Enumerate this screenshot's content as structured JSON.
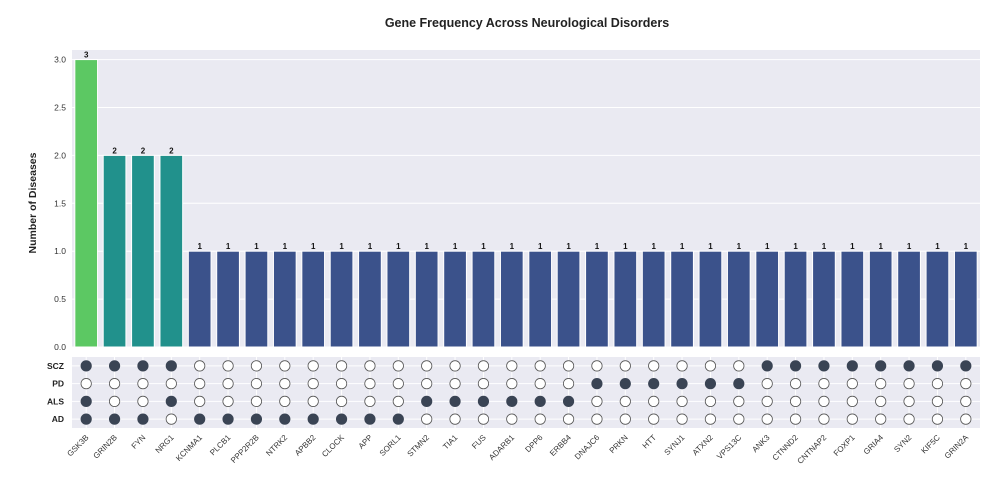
{
  "chart_data": {
    "type": "bar",
    "title": "Gene Frequency Across Neurological Disorders",
    "xlabel": "",
    "ylabel": "Number of Diseases",
    "ylim": [
      0,
      3.1
    ],
    "yticks": [
      "0.0",
      "0.5",
      "1.0",
      "1.5",
      "2.0",
      "2.5",
      "3.0"
    ],
    "ytick_values": [
      0,
      0.5,
      1.0,
      1.5,
      2.0,
      2.5,
      3.0
    ],
    "grid": true,
    "categories": [
      "GSK3B",
      "GRIN2B",
      "FYN",
      "NRG1",
      "KCNMA1",
      "PLCB1",
      "PPP2R2B",
      "NTRK2",
      "APBB2",
      "CLOCK",
      "APP",
      "SORL1",
      "STMN2",
      "TIA1",
      "FUS",
      "ADARB1",
      "DPP6",
      "ERBB4",
      "DNAJC6",
      "PRKN",
      "HTT",
      "SYNJ1",
      "ATXN2",
      "VPS13C",
      "ANK3",
      "CTNND2",
      "CNTNAP2",
      "FOXP1",
      "GRIA4",
      "SYN2",
      "KIF5C",
      "GRIN2A"
    ],
    "values": [
      3,
      2,
      2,
      2,
      1,
      1,
      1,
      1,
      1,
      1,
      1,
      1,
      1,
      1,
      1,
      1,
      1,
      1,
      1,
      1,
      1,
      1,
      1,
      1,
      1,
      1,
      1,
      1,
      1,
      1,
      1,
      1
    ],
    "data_labels": [
      "3",
      "2",
      "2",
      "2",
      "1",
      "1",
      "1",
      "1",
      "1",
      "1",
      "1",
      "1",
      "1",
      "1",
      "1",
      "1",
      "1",
      "1",
      "1",
      "1",
      "1",
      "1",
      "1",
      "1",
      "1",
      "1",
      "1",
      "1",
      "1",
      "1",
      "1",
      "1"
    ],
    "colors": {
      "3": "#5cc863",
      "2": "#21918c",
      "1": "#3b528b"
    },
    "matrix": {
      "rows": [
        "SCZ",
        "PD",
        "ALS",
        "AD"
      ],
      "membership": {
        "SCZ": [
          1,
          1,
          1,
          1,
          0,
          0,
          0,
          0,
          0,
          0,
          0,
          0,
          0,
          0,
          0,
          0,
          0,
          0,
          0,
          0,
          0,
          0,
          0,
          0,
          1,
          1,
          1,
          1,
          1,
          1,
          1,
          1
        ],
        "PD": [
          0,
          0,
          0,
          0,
          0,
          0,
          0,
          0,
          0,
          0,
          0,
          0,
          0,
          0,
          0,
          0,
          0,
          0,
          1,
          1,
          1,
          1,
          1,
          1,
          0,
          0,
          0,
          0,
          0,
          0,
          0,
          0
        ],
        "ALS": [
          1,
          0,
          0,
          1,
          0,
          0,
          0,
          0,
          0,
          0,
          0,
          0,
          1,
          1,
          1,
          1,
          1,
          1,
          0,
          0,
          0,
          0,
          0,
          0,
          0,
          0,
          0,
          0,
          0,
          0,
          0,
          0
        ],
        "AD": [
          1,
          1,
          1,
          0,
          1,
          1,
          1,
          1,
          1,
          1,
          1,
          1,
          0,
          0,
          0,
          0,
          0,
          0,
          0,
          0,
          0,
          0,
          0,
          0,
          0,
          0,
          0,
          0,
          0,
          0,
          0,
          0
        ]
      },
      "filled_color": "#3a4454",
      "empty_color": "#ffffff"
    }
  }
}
